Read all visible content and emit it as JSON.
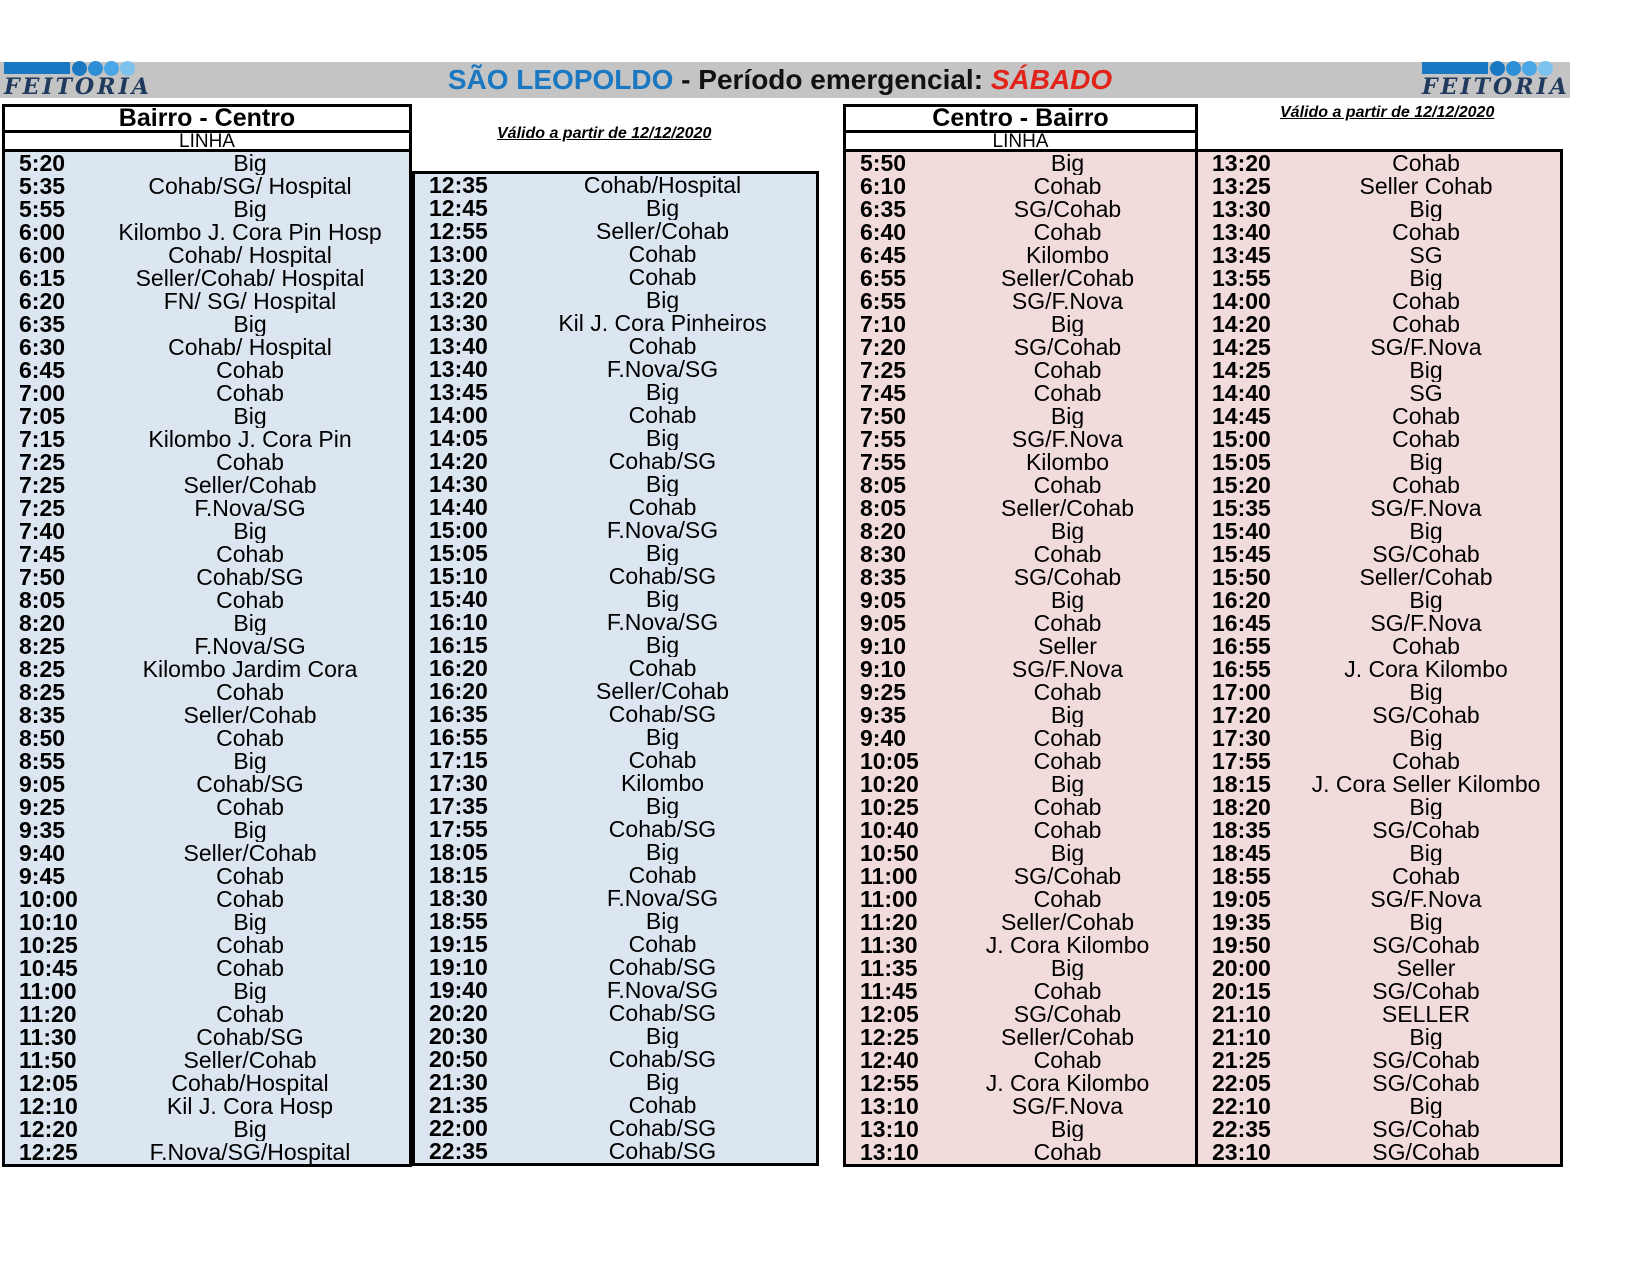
{
  "header": {
    "city": "SÃO LEOPOLDO",
    "separator": " - ",
    "period": "Período emergencial: ",
    "day": "SÁBADO"
  },
  "logo": {
    "text": "FEITORIA"
  },
  "colors": {
    "brand_blue": "#1a78c2",
    "accent_red": "#e2231a",
    "panel_blue": "#dce6f0",
    "panel_pink": "#f2dcdb"
  },
  "bairro_centro": {
    "title": "Bairro - Centro",
    "subtitle": "LINHA",
    "valid": "Válido a partir de 12/12/2020",
    "col1": [
      [
        "5:20",
        "Big"
      ],
      [
        "5:35",
        "Cohab/SG/ Hospital"
      ],
      [
        "5:55",
        "Big"
      ],
      [
        "6:00",
        "Kilombo J. Cora Pin Hosp"
      ],
      [
        "6:00",
        "Cohab/ Hospital"
      ],
      [
        "6:15",
        "Seller/Cohab/ Hospital"
      ],
      [
        "6:20",
        "FN/ SG/ Hospital"
      ],
      [
        "6:35",
        "Big"
      ],
      [
        "6:30",
        "Cohab/ Hospital"
      ],
      [
        "6:45",
        "Cohab"
      ],
      [
        "7:00",
        "Cohab"
      ],
      [
        "7:05",
        "Big"
      ],
      [
        "7:15",
        "Kilombo J. Cora Pin"
      ],
      [
        "7:25",
        "Cohab"
      ],
      [
        "7:25",
        "Seller/Cohab"
      ],
      [
        "7:25",
        "F.Nova/SG"
      ],
      [
        "7:40",
        "Big"
      ],
      [
        "7:45",
        "Cohab"
      ],
      [
        "7:50",
        "Cohab/SG"
      ],
      [
        "8:05",
        "Cohab"
      ],
      [
        "8:20",
        "Big"
      ],
      [
        "8:25",
        "F.Nova/SG"
      ],
      [
        "8:25",
        "Kilombo Jardim Cora"
      ],
      [
        "8:25",
        "Cohab"
      ],
      [
        "8:35",
        "Seller/Cohab"
      ],
      [
        "8:50",
        "Cohab"
      ],
      [
        "8:55",
        "Big"
      ],
      [
        "9:05",
        "Cohab/SG"
      ],
      [
        "9:25",
        "Cohab"
      ],
      [
        "9:35",
        "Big"
      ],
      [
        "9:40",
        "Seller/Cohab"
      ],
      [
        "9:45",
        "Cohab"
      ],
      [
        "10:00",
        "Cohab"
      ],
      [
        "10:10",
        "Big"
      ],
      [
        "10:25",
        "Cohab"
      ],
      [
        "10:45",
        "Cohab"
      ],
      [
        "11:00",
        "Big"
      ],
      [
        "11:20",
        "Cohab"
      ],
      [
        "11:30",
        "Cohab/SG"
      ],
      [
        "11:50",
        "Seller/Cohab"
      ],
      [
        "12:05",
        "Cohab/Hospital"
      ],
      [
        "12:10",
        "Kil J. Cora Hosp"
      ],
      [
        "12:20",
        "Big"
      ],
      [
        "12:25",
        "F.Nova/SG/Hospital"
      ]
    ],
    "col2": [
      [
        "12:35",
        "Cohab/Hospital"
      ],
      [
        "12:45",
        "Big"
      ],
      [
        "12:55",
        "Seller/Cohab"
      ],
      [
        "13:00",
        "Cohab"
      ],
      [
        "13:20",
        "Cohab"
      ],
      [
        "13:20",
        "Big"
      ],
      [
        "13:30",
        "Kil J. Cora Pinheiros"
      ],
      [
        "13:40",
        "Cohab"
      ],
      [
        "13:40",
        "F.Nova/SG"
      ],
      [
        "13:45",
        "Big"
      ],
      [
        "14:00",
        "Cohab"
      ],
      [
        "14:05",
        "Big"
      ],
      [
        "14:20",
        "Cohab/SG"
      ],
      [
        "14:30",
        "Big"
      ],
      [
        "14:40",
        "Cohab"
      ],
      [
        "15:00",
        "F.Nova/SG"
      ],
      [
        "15:05",
        "Big"
      ],
      [
        "15:10",
        "Cohab/SG"
      ],
      [
        "15:40",
        "Big"
      ],
      [
        "16:10",
        "F.Nova/SG"
      ],
      [
        "16:15",
        "Big"
      ],
      [
        "16:20",
        "Cohab"
      ],
      [
        "16:20",
        "Seller/Cohab"
      ],
      [
        "16:35",
        "Cohab/SG"
      ],
      [
        "16:55",
        "Big"
      ],
      [
        "17:15",
        "Cohab"
      ],
      [
        "17:30",
        "Kilombo"
      ],
      [
        "17:35",
        "Big"
      ],
      [
        "17:55",
        "Cohab/SG"
      ],
      [
        "18:05",
        "Big"
      ],
      [
        "18:15",
        "Cohab"
      ],
      [
        "18:30",
        "F.Nova/SG"
      ],
      [
        "18:55",
        "Big"
      ],
      [
        "19:15",
        "Cohab"
      ],
      [
        "19:10",
        "Cohab/SG"
      ],
      [
        "19:40",
        "F.Nova/SG"
      ],
      [
        "20:20",
        "Cohab/SG"
      ],
      [
        "20:30",
        "Big"
      ],
      [
        "20:50",
        "Cohab/SG"
      ],
      [
        "21:30",
        "Big"
      ],
      [
        "21:35",
        "Cohab"
      ],
      [
        "22:00",
        "Cohab/SG"
      ],
      [
        "22:35",
        "Cohab/SG"
      ]
    ]
  },
  "centro_bairro": {
    "title": "Centro - Bairro",
    "subtitle": "LINHA",
    "valid": "Válido a partir de 12/12/2020",
    "col1": [
      [
        "5:50",
        "Big"
      ],
      [
        "6:10",
        "Cohab"
      ],
      [
        "6:35",
        "SG/Cohab"
      ],
      [
        "6:40",
        "Cohab"
      ],
      [
        "6:45",
        "Kilombo"
      ],
      [
        "6:55",
        "Seller/Cohab"
      ],
      [
        "6:55",
        "SG/F.Nova"
      ],
      [
        "7:10",
        "Big"
      ],
      [
        "7:20",
        "SG/Cohab"
      ],
      [
        "7:25",
        "Cohab"
      ],
      [
        "7:45",
        "Cohab"
      ],
      [
        "7:50",
        "Big"
      ],
      [
        "7:55",
        "SG/F.Nova"
      ],
      [
        "7:55",
        "Kilombo"
      ],
      [
        "8:05",
        "Cohab"
      ],
      [
        "8:05",
        "Seller/Cohab"
      ],
      [
        "8:20",
        "Big"
      ],
      [
        "8:30",
        "Cohab"
      ],
      [
        "8:35",
        "SG/Cohab"
      ],
      [
        "9:05",
        "Big"
      ],
      [
        "9:05",
        "Cohab"
      ],
      [
        "9:10",
        "Seller"
      ],
      [
        "9:10",
        "SG/F.Nova"
      ],
      [
        "9:25",
        "Cohab"
      ],
      [
        "9:35",
        "Big"
      ],
      [
        "9:40",
        "Cohab"
      ],
      [
        "10:05",
        "Cohab"
      ],
      [
        "10:20",
        "Big"
      ],
      [
        "10:25",
        "Cohab"
      ],
      [
        "10:40",
        "Cohab"
      ],
      [
        "10:50",
        "Big"
      ],
      [
        "11:00",
        "SG/Cohab"
      ],
      [
        "11:00",
        "Cohab"
      ],
      [
        "11:20",
        "Seller/Cohab"
      ],
      [
        "11:30",
        "J. Cora Kilombo"
      ],
      [
        "11:35",
        "Big"
      ],
      [
        "11:45",
        "Cohab"
      ],
      [
        "12:05",
        "SG/Cohab"
      ],
      [
        "12:25",
        "Seller/Cohab"
      ],
      [
        "12:40",
        "Cohab"
      ],
      [
        "12:55",
        "J. Cora Kilombo"
      ],
      [
        "13:10",
        "SG/F.Nova"
      ],
      [
        "13:10",
        "Big"
      ],
      [
        "13:10",
        "Cohab"
      ]
    ],
    "col2": [
      [
        "13:20",
        "Cohab"
      ],
      [
        "13:25",
        "Seller Cohab"
      ],
      [
        "13:30",
        "Big"
      ],
      [
        "13:40",
        "Cohab"
      ],
      [
        "13:45",
        "SG"
      ],
      [
        "13:55",
        "Big"
      ],
      [
        "14:00",
        "Cohab"
      ],
      [
        "14:20",
        "Cohab"
      ],
      [
        "14:25",
        "SG/F.Nova"
      ],
      [
        "14:25",
        "Big"
      ],
      [
        "14:40",
        "SG"
      ],
      [
        "14:45",
        "Cohab"
      ],
      [
        "15:00",
        "Cohab"
      ],
      [
        "15:05",
        "Big"
      ],
      [
        "15:20",
        "Cohab"
      ],
      [
        "15:35",
        "SG/F.Nova"
      ],
      [
        "15:40",
        "Big"
      ],
      [
        "15:45",
        "SG/Cohab"
      ],
      [
        "15:50",
        "Seller/Cohab"
      ],
      [
        "16:20",
        "Big"
      ],
      [
        "16:45",
        "SG/F.Nova"
      ],
      [
        "16:55",
        "Cohab"
      ],
      [
        "16:55",
        "J. Cora Kilombo"
      ],
      [
        "17:00",
        "Big"
      ],
      [
        "17:20",
        "SG/Cohab"
      ],
      [
        "17:30",
        "Big"
      ],
      [
        "17:55",
        "Cohab"
      ],
      [
        "18:15",
        "J. Cora Seller Kilombo"
      ],
      [
        "18:20",
        "Big"
      ],
      [
        "18:35",
        "SG/Cohab"
      ],
      [
        "18:45",
        "Big"
      ],
      [
        "18:55",
        "Cohab"
      ],
      [
        "19:05",
        "SG/F.Nova"
      ],
      [
        "19:35",
        "Big"
      ],
      [
        "19:50",
        "SG/Cohab"
      ],
      [
        "20:00",
        "Seller"
      ],
      [
        "20:15",
        "SG/Cohab"
      ],
      [
        "21:10",
        "SELLER"
      ],
      [
        "21:10",
        "Big"
      ],
      [
        "21:25",
        "SG/Cohab"
      ],
      [
        "22:05",
        "SG/Cohab"
      ],
      [
        "22:10",
        "Big"
      ],
      [
        "22:35",
        "SG/Cohab"
      ],
      [
        "23:10",
        "SG/Cohab"
      ]
    ]
  }
}
